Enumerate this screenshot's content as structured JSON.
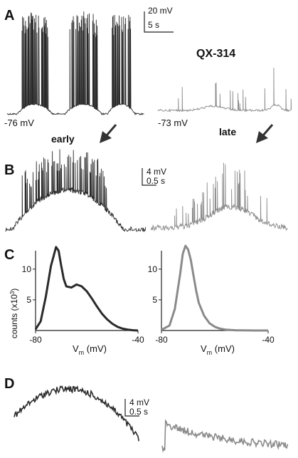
{
  "panels": {
    "A": {
      "label": "A",
      "scalebar": {
        "v": "20 mV",
        "h": "5 s"
      },
      "drug": "QX-314",
      "left": {
        "vm": "-76 mV",
        "phase": "early"
      },
      "right": {
        "vm": "-73 mV",
        "phase": "late"
      }
    },
    "B": {
      "label": "B",
      "scalebar": {
        "v": "4 mV",
        "h": "0.5 s"
      }
    },
    "C": {
      "label": "C"
    },
    "D": {
      "label": "D",
      "scalebar": {
        "v": "4 mV",
        "h": "0.5 s"
      }
    }
  },
  "colors": {
    "early_trace": "#2a2a2a",
    "late_trace": "#8a8a8a",
    "arrow": "#333333"
  },
  "chart_data": [
    {
      "type": "line",
      "panel": "C-left",
      "xlabel": "V",
      "xlabel_sub": "m",
      "xlabel_unit": "(mV)",
      "ylabel_main": "counts (x10",
      "ylabel_sup": "3",
      "ylabel_end": ")",
      "xlim": [
        -80,
        -40
      ],
      "ylim": [
        0,
        13
      ],
      "xticks": [
        "-80",
        "-40"
      ],
      "yticks": [
        "5",
        "10"
      ],
      "series": [
        {
          "x": [
            -80,
            -78,
            -76,
            -74,
            -72,
            -71,
            -70,
            -69,
            -68,
            -66,
            -64,
            -62,
            -60,
            -58,
            -56,
            -54,
            -52,
            -50,
            -48,
            -46,
            -44,
            -42,
            -40
          ],
          "y": [
            0.2,
            1.5,
            5.5,
            10.5,
            13.6,
            13.0,
            10.6,
            8.4,
            7.2,
            7.0,
            7.5,
            7.2,
            6.4,
            5.2,
            3.9,
            2.7,
            1.8,
            1.1,
            0.6,
            0.3,
            0.15,
            0.05,
            0
          ]
        }
      ]
    },
    {
      "type": "line",
      "panel": "C-right",
      "xlabel": "V",
      "xlabel_sub": "m",
      "xlabel_unit": "(mV)",
      "xlim": [
        -80,
        -40
      ],
      "ylim": [
        0,
        13
      ],
      "xticks": [
        "-80",
        "-40"
      ],
      "yticks": [
        "5",
        "10"
      ],
      "series": [
        {
          "x": [
            -80,
            -77,
            -75,
            -73,
            -72,
            -71,
            -70,
            -69,
            -68,
            -67,
            -66,
            -64,
            -62,
            -60,
            -58,
            -56,
            -54,
            -52,
            -50,
            -45,
            -40
          ],
          "y": [
            0.1,
            0.8,
            3.5,
            9.2,
            12.5,
            13.8,
            13.2,
            11.5,
            9.0,
            6.5,
            4.5,
            2.4,
            1.2,
            0.6,
            0.3,
            0.15,
            0.08,
            0.04,
            0.02,
            0,
            0
          ]
        }
      ]
    }
  ]
}
